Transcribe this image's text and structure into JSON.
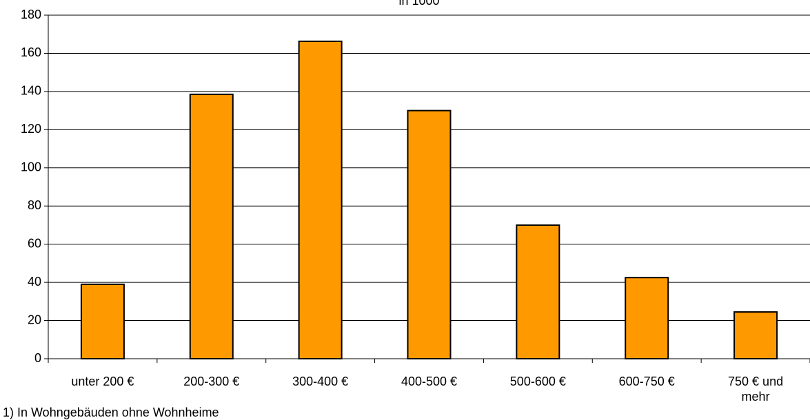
{
  "chart_data": {
    "type": "bar",
    "subtitle": "in 1000",
    "categories": [
      "unter 200 €",
      "200-300 €",
      "300-400 €",
      "400-500 €",
      "500-600 €",
      "600-750 €",
      "750 € und mehr"
    ],
    "values": [
      39,
      138.5,
      166.3,
      130,
      70,
      42.5,
      24.5
    ],
    "color": "#ff9900",
    "ylim": [
      0,
      180
    ],
    "yticks": [
      0,
      20,
      40,
      60,
      80,
      100,
      120,
      140,
      160,
      180
    ],
    "grid": true,
    "footnote": "1) In Wohngebäuden ohne Wohnheime"
  }
}
